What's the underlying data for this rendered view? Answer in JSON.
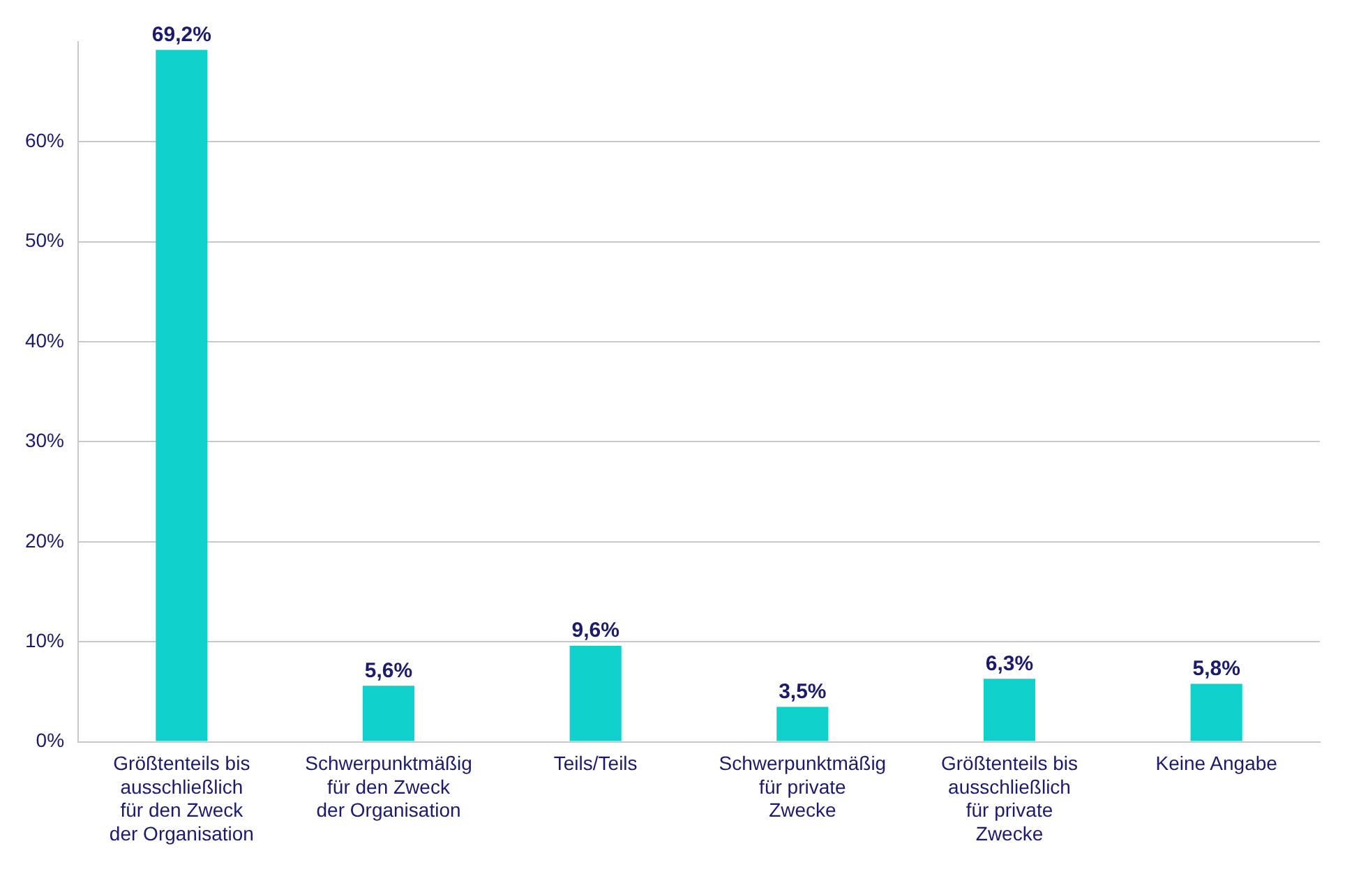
{
  "chart_data": {
    "type": "bar",
    "categories": [
      "Größtenteils bis ausschließlich für den Zweck der Organisation",
      "Schwerpunktmäßig für den Zweck der Organisation",
      "Teils/Teils",
      "Schwerpunktmäßig für private Zwecke",
      "Größtenteils bis ausschließlich für private Zwecke",
      "Keine Angabe"
    ],
    "values": [
      69.2,
      5.6,
      9.6,
      3.5,
      6.3,
      5.8
    ],
    "value_labels": [
      "69,2%",
      "5,6%",
      "9,6%",
      "3,5%",
      "6,3%",
      "5,8%"
    ],
    "color": "#10d0cc",
    "ylim": [
      0,
      70
    ],
    "yticks": [
      {
        "value": 0,
        "label": "0%"
      },
      {
        "value": 10,
        "label": "10%"
      },
      {
        "value": 20,
        "label": "20%"
      },
      {
        "value": 30,
        "label": "30%"
      },
      {
        "value": 40,
        "label": "40%"
      },
      {
        "value": 50,
        "label": "50%"
      },
      {
        "value": 60,
        "label": "60%"
      }
    ],
    "grid": "y"
  }
}
